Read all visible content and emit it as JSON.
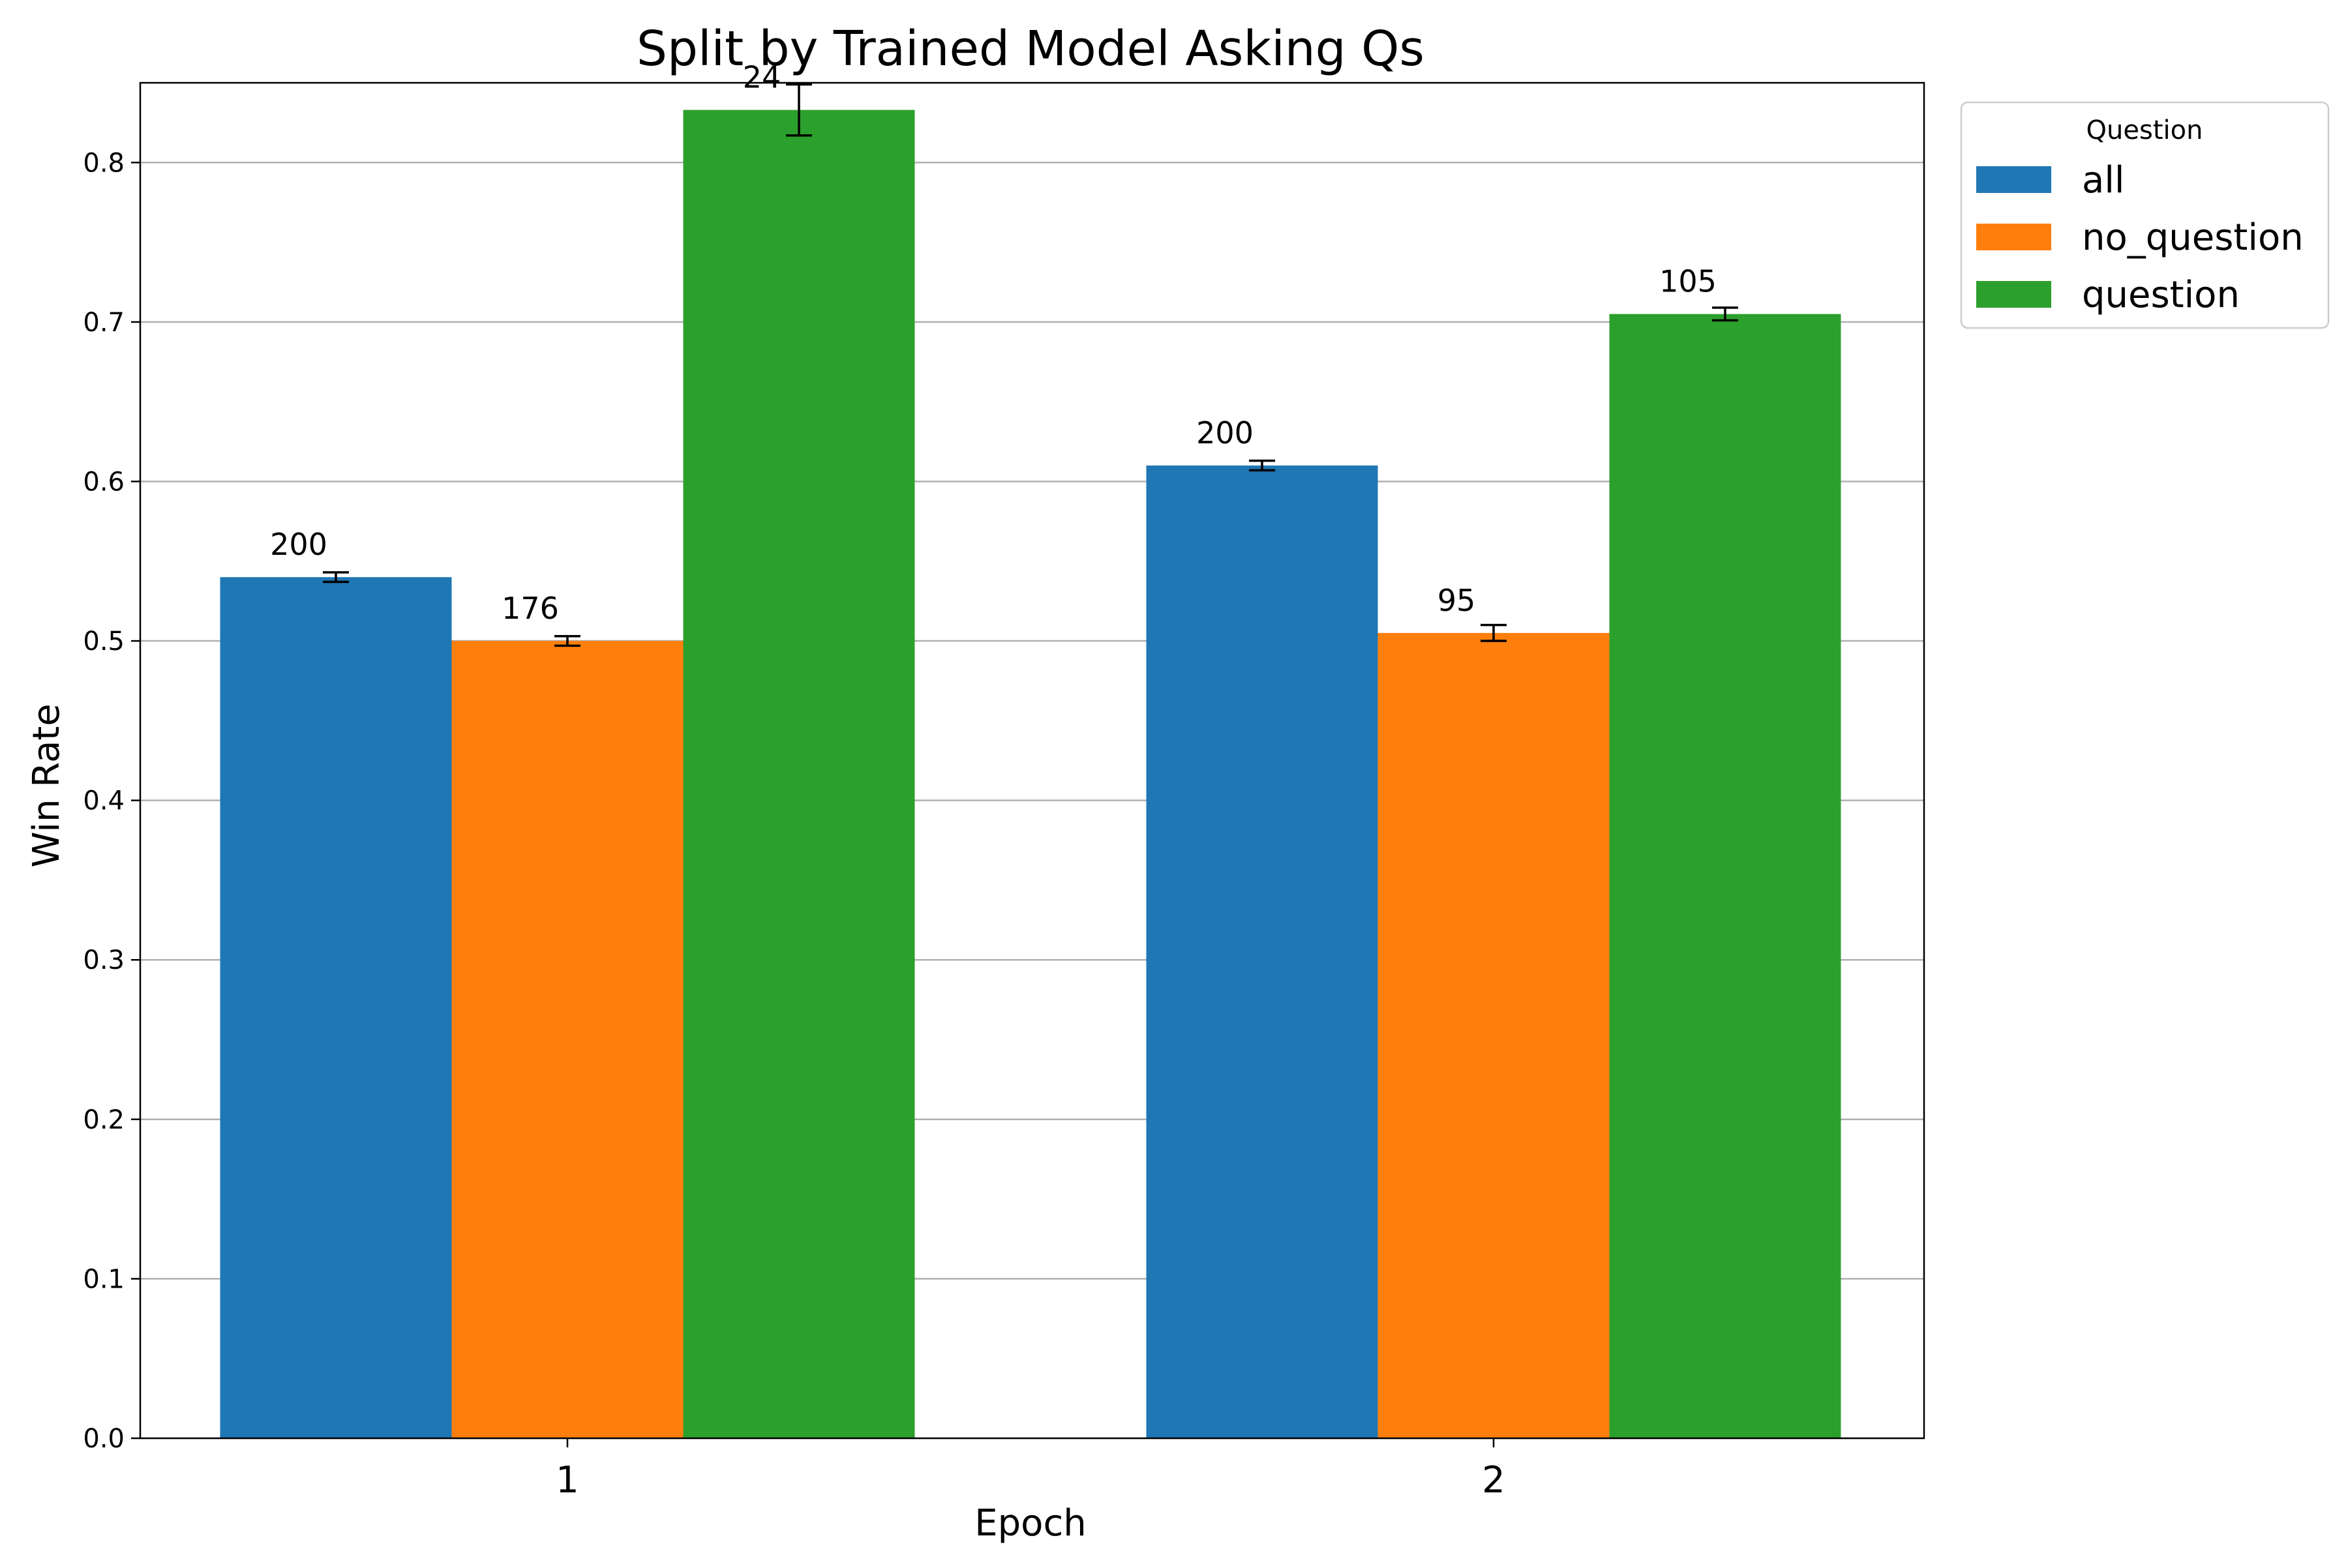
{
  "chart_data": {
    "type": "bar",
    "title": "Split by Trained Model Asking Qs",
    "xlabel": "Epoch",
    "ylabel": "Win Rate",
    "categories": [
      "1",
      "2"
    ],
    "ylim": [
      0,
      0.85
    ],
    "yticks": [
      0.0,
      0.1,
      0.2,
      0.3,
      0.4,
      0.5,
      0.6,
      0.7,
      0.8
    ],
    "ytick_labels": [
      "0.0",
      "0.1",
      "0.2",
      "0.3",
      "0.4",
      "0.5",
      "0.6",
      "0.7",
      "0.8"
    ],
    "grid": "y",
    "legend": {
      "title": "Question",
      "placement": "outside upper right"
    },
    "series": [
      {
        "name": "all",
        "color": "#1f77b4",
        "values": [
          0.54,
          0.61
        ],
        "errors": [
          0.003,
          0.003
        ],
        "labels": [
          "200",
          "200"
        ]
      },
      {
        "name": "no_question",
        "color": "#ff7f0e",
        "values": [
          0.5,
          0.505
        ],
        "errors": [
          0.003,
          0.005
        ],
        "labels": [
          "176",
          "95"
        ]
      },
      {
        "name": "question",
        "color": "#2ca02c",
        "values": [
          0.833,
          0.705
        ],
        "errors": [
          0.016,
          0.004
        ],
        "labels": [
          "24",
          "105"
        ]
      }
    ]
  }
}
